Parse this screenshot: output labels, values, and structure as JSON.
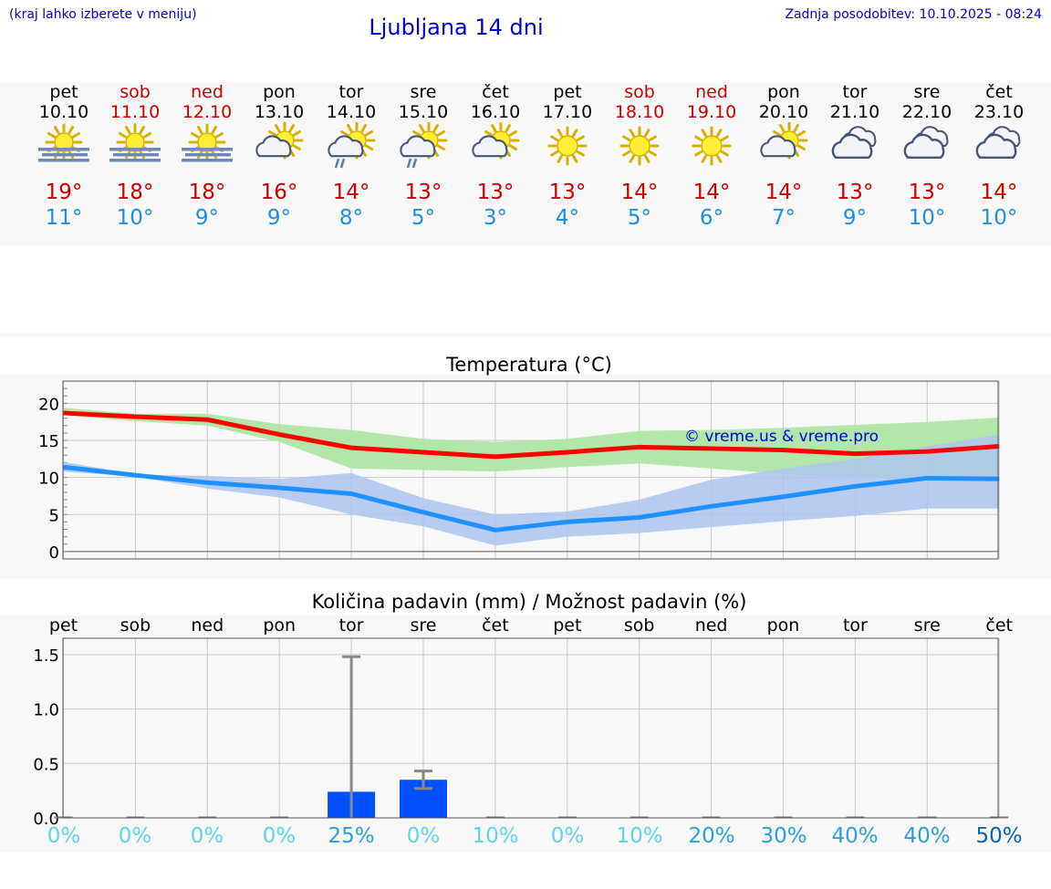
{
  "header": {
    "hint": "(kraj lahko izberete v meniju)",
    "title": "Ljubljana 14 dni",
    "updated": "Zadnja posodobitev: 10.10.2025 - 08:24"
  },
  "colors": {
    "link": "#0000cc",
    "weekend": "#cc0000",
    "max": "#ff0000",
    "min": "#1e90ff",
    "max_band": "#aee6a4",
    "min_band": "#adc4f0",
    "bar": "#0050ff"
  },
  "days": [
    {
      "name": "pet",
      "date": "10.10",
      "weekend": false,
      "icon": "sun-fog-icon",
      "max": "19°",
      "min": "11°"
    },
    {
      "name": "sob",
      "date": "11.10",
      "weekend": true,
      "icon": "sun-fog-icon",
      "max": "18°",
      "min": "10°"
    },
    {
      "name": "ned",
      "date": "12.10",
      "weekend": true,
      "icon": "sun-fog-icon",
      "max": "18°",
      "min": "9°"
    },
    {
      "name": "pon",
      "date": "13.10",
      "weekend": false,
      "icon": "partly-cloudy-icon",
      "max": "16°",
      "min": "9°"
    },
    {
      "name": "tor",
      "date": "14.10",
      "weekend": false,
      "icon": "partly-cloudy-rain-icon",
      "max": "14°",
      "min": "8°"
    },
    {
      "name": "sre",
      "date": "15.10",
      "weekend": false,
      "icon": "partly-cloudy-rain-icon",
      "max": "13°",
      "min": "5°"
    },
    {
      "name": "čet",
      "date": "16.10",
      "weekend": false,
      "icon": "partly-cloudy-icon",
      "max": "13°",
      "min": "3°"
    },
    {
      "name": "pet",
      "date": "17.10",
      "weekend": false,
      "icon": "sun-icon",
      "max": "13°",
      "min": "4°"
    },
    {
      "name": "sob",
      "date": "18.10",
      "weekend": true,
      "icon": "sun-icon",
      "max": "14°",
      "min": "5°"
    },
    {
      "name": "ned",
      "date": "19.10",
      "weekend": true,
      "icon": "sun-icon",
      "max": "14°",
      "min": "6°"
    },
    {
      "name": "pon",
      "date": "20.10",
      "weekend": false,
      "icon": "partly-cloudy-icon",
      "max": "14°",
      "min": "7°"
    },
    {
      "name": "tor",
      "date": "21.10",
      "weekend": false,
      "icon": "cloudy-icon",
      "max": "13°",
      "min": "9°"
    },
    {
      "name": "sre",
      "date": "22.10",
      "weekend": false,
      "icon": "cloudy-icon",
      "max": "13°",
      "min": "10°"
    },
    {
      "name": "čet",
      "date": "23.10",
      "weekend": false,
      "icon": "cloudy-icon",
      "max": "14°",
      "min": "10°"
    }
  ],
  "chart_data": [
    {
      "type": "line",
      "title": "Temperatura (°C)",
      "watermark": "© vreme.us & vreme.pro",
      "ylim": [
        -1,
        23
      ],
      "yticks": [
        0,
        5,
        10,
        15,
        20
      ],
      "grid": true,
      "series": [
        {
          "values": [
            18.7,
            18.2,
            17.8,
            15.8,
            14.0,
            13.4,
            12.8,
            13.4,
            14.1,
            13.9,
            13.7,
            13.2,
            13.5,
            14.2
          ],
          "band_low": [
            18.4,
            17.6,
            17.0,
            14.8,
            11.2,
            11.0,
            10.8,
            11.4,
            11.9,
            11.2,
            10.5,
            10.0,
            9.7,
            9.5
          ],
          "band_high": [
            19.4,
            18.6,
            18.6,
            17.2,
            16.4,
            15.2,
            14.8,
            15.2,
            16.3,
            16.4,
            16.7,
            17.1,
            17.5,
            18.1
          ]
        },
        {
          "values": [
            11.4,
            10.3,
            9.3,
            8.6,
            7.8,
            5.3,
            2.9,
            4.0,
            4.6,
            6.1,
            7.4,
            8.8,
            9.9,
            9.8
          ],
          "band_low": [
            10.8,
            10.1,
            8.5,
            7.3,
            5.0,
            3.4,
            0.8,
            2.0,
            2.5,
            3.3,
            4.1,
            4.8,
            5.8,
            5.8
          ],
          "band_high": [
            12.1,
            10.4,
            10.2,
            9.8,
            10.6,
            7.2,
            5.0,
            5.4,
            7.0,
            9.7,
            11.2,
            12.5,
            14.2,
            15.8
          ]
        }
      ]
    },
    {
      "type": "bar",
      "title": "Količina padavin (mm) / Možnost padavin (%)",
      "categories": [
        "pet",
        "sob",
        "ned",
        "pon",
        "tor",
        "sre",
        "čet",
        "pet",
        "sob",
        "ned",
        "pon",
        "tor",
        "sre",
        "čet"
      ],
      "values": [
        0,
        0,
        0,
        0,
        0.24,
        0.35,
        0,
        0,
        0,
        0,
        0,
        0,
        0,
        0
      ],
      "err_low": [
        0,
        0,
        0,
        0,
        0,
        0.27,
        0,
        0,
        0,
        0,
        0,
        0,
        0,
        0
      ],
      "err_high": [
        0,
        0,
        0,
        0,
        1.48,
        0.43,
        0,
        0,
        0,
        0,
        0,
        0,
        0,
        0
      ],
      "probability": [
        "0%",
        "0%",
        "0%",
        "0%",
        "25%",
        "0%",
        "10%",
        "0%",
        "10%",
        "20%",
        "30%",
        "40%",
        "40%",
        "50%"
      ],
      "prob_colors": [
        "#5fd3e8",
        "#5fd3e8",
        "#5fd3e8",
        "#5fd3e8",
        "#2b9fd9",
        "#5fd3e8",
        "#5fd3e8",
        "#5fd3e8",
        "#5fd3e8",
        "#2b9fd9",
        "#2b9fd9",
        "#2b9fd9",
        "#2b9fd9",
        "#0a63b4"
      ],
      "ylim": [
        0,
        1.65
      ],
      "yticks": [
        "0.0",
        "0.5",
        "1.0",
        "1.5"
      ]
    }
  ]
}
